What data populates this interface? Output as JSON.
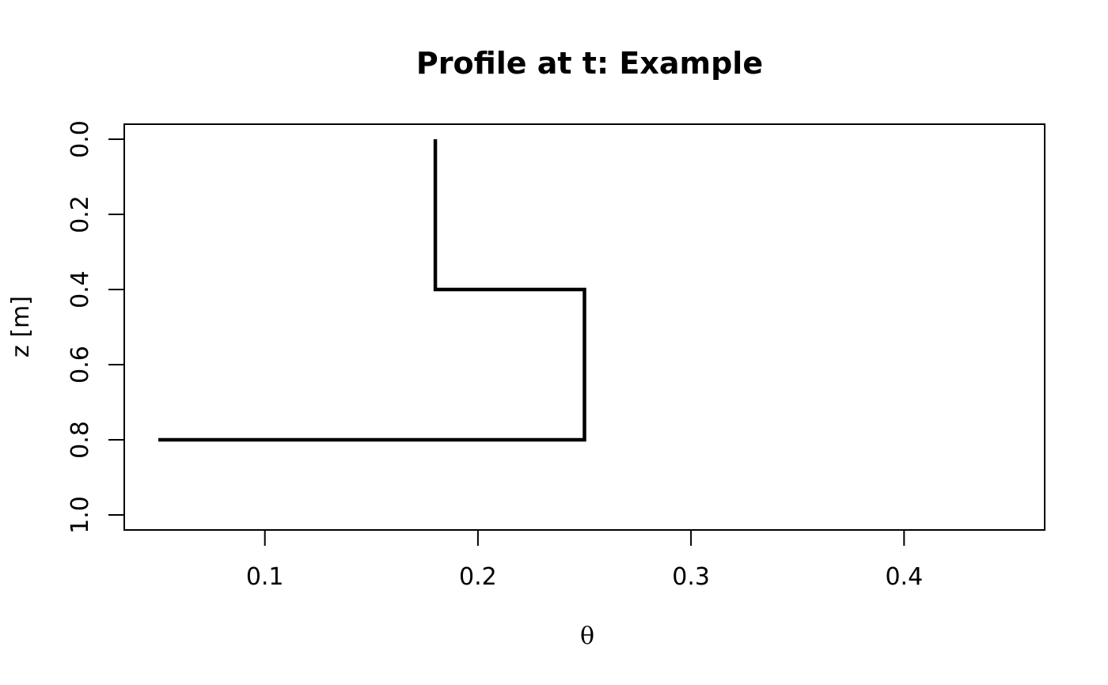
{
  "chart_data": {
    "type": "line",
    "title": "Profile at t: Example",
    "xlabel": "θ",
    "ylabel": "z [m]",
    "xlim": [
      0.034,
      0.466
    ],
    "ylim": [
      1.04,
      -0.04
    ],
    "y_reversed": true,
    "xticks": [
      0.1,
      0.2,
      0.3,
      0.4
    ],
    "xtick_labels": [
      "0.1",
      "0.2",
      "0.3",
      "0.4"
    ],
    "yticks": [
      0.0,
      0.2,
      0.4,
      0.6,
      0.8,
      1.0
    ],
    "ytick_labels": [
      "0.0",
      "0.2",
      "0.4",
      "0.6",
      "0.8",
      "1.0"
    ],
    "grid": false,
    "legend": false,
    "line_color": "#000000",
    "series": [
      {
        "x": [
          0.18,
          0.18,
          0.25,
          0.25,
          0.05
        ],
        "y": [
          0.0,
          0.4,
          0.4,
          0.8,
          0.8
        ]
      }
    ]
  }
}
